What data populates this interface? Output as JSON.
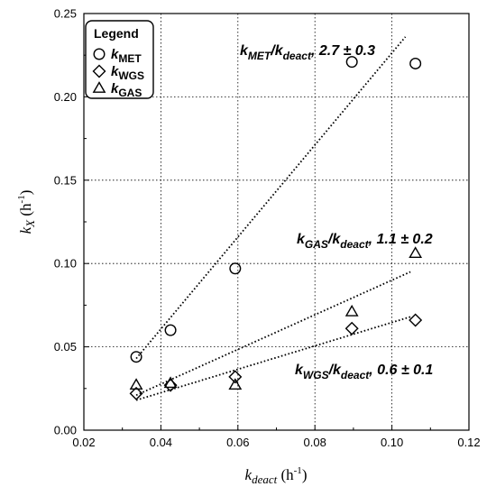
{
  "chart_data": {
    "type": "scatter",
    "xlabel": {
      "main": "k",
      "sub": "deact",
      "unit": " (h",
      "exp": "-1",
      "close": ")"
    },
    "ylabel": {
      "main": "k",
      "sub": "X",
      "unit": " (h",
      "exp": "-1",
      "close": ")"
    },
    "xlim": [
      0.02,
      0.12
    ],
    "ylim": [
      0.0,
      0.25
    ],
    "xticks": [
      0.02,
      0.04,
      0.06,
      0.08,
      0.1,
      0.12
    ],
    "xtick_labels": [
      "0.02",
      "0.04",
      "0.06",
      "0.08",
      "0.10",
      "0.12"
    ],
    "yticks": [
      0.0,
      0.05,
      0.1,
      0.15,
      0.2,
      0.25
    ],
    "ytick_labels": [
      "0.00",
      "0.05",
      "0.10",
      "0.15",
      "0.20",
      "0.25"
    ],
    "grid": true,
    "legend": {
      "title": "Legend",
      "placement": "top-left",
      "entries": [
        {
          "marker": "circle",
          "main": "k",
          "sub": "MET"
        },
        {
          "marker": "diamond",
          "main": "k",
          "sub": "WGS"
        },
        {
          "marker": "triangle",
          "main": "k",
          "sub": "GAS"
        }
      ]
    },
    "series": [
      {
        "marker": "circle",
        "points": [
          [
            0.0336,
            0.044
          ],
          [
            0.0425,
            0.06
          ],
          [
            0.0593,
            0.097
          ],
          [
            0.0896,
            0.221
          ],
          [
            0.1061,
            0.22
          ]
        ],
        "fit_line": [
          [
            0.0336,
            0.043
          ],
          [
            0.1035,
            0.236
          ]
        ]
      },
      {
        "marker": "diamond",
        "points": [
          [
            0.0336,
            0.022
          ],
          [
            0.0425,
            0.027
          ],
          [
            0.0593,
            0.032
          ],
          [
            0.0896,
            0.061
          ],
          [
            0.1061,
            0.066
          ]
        ],
        "fit_line": [
          [
            0.0336,
            0.018
          ],
          [
            0.1048,
            0.068
          ]
        ]
      },
      {
        "marker": "triangle",
        "points": [
          [
            0.0336,
            0.027
          ],
          [
            0.0425,
            0.028
          ],
          [
            0.0593,
            0.027
          ],
          [
            0.0896,
            0.071
          ],
          [
            0.1061,
            0.106
          ]
        ],
        "fit_line": [
          [
            0.0336,
            0.021
          ],
          [
            0.1048,
            0.095
          ]
        ]
      }
    ],
    "annotations": [
      {
        "main": "k",
        "sub": "MET",
        "mid": "/k",
        "sub2": "deact",
        "value": ",  2.7 ± 0.3"
      },
      {
        "main": "k",
        "sub": "GAS",
        "mid": "/k",
        "sub2": "deact",
        "value": ",  1.1 ± 0.2"
      },
      {
        "main": "k",
        "sub": "WGS",
        "mid": "/k",
        "sub2": "deact",
        "value": ",  0.6 ± 0.1"
      }
    ]
  }
}
